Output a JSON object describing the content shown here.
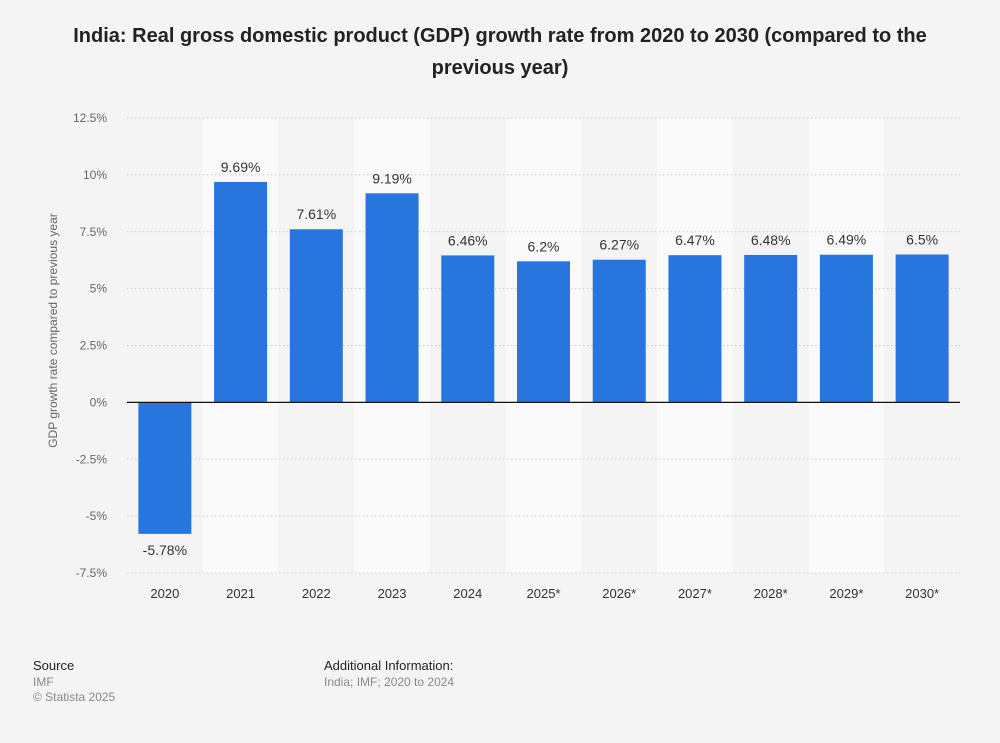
{
  "chart_data": {
    "type": "bar",
    "title": "India: Real gross domestic product (GDP) growth rate from 2020 to 2030 (compared to the previous year)",
    "xlabel": "",
    "ylabel": "GDP growth rate compared to previous year",
    "categories": [
      "2020",
      "2021",
      "2022",
      "2023",
      "2024",
      "2025*",
      "2026*",
      "2027*",
      "2028*",
      "2029*",
      "2030*"
    ],
    "values": [
      -5.78,
      9.69,
      7.61,
      9.19,
      6.46,
      6.2,
      6.27,
      6.47,
      6.48,
      6.49,
      6.5
    ],
    "data_labels": [
      "-5.78%",
      "9.69%",
      "7.61%",
      "9.19%",
      "6.46%",
      "6.2%",
      "6.27%",
      "6.47%",
      "6.48%",
      "6.49%",
      "6.5%"
    ],
    "ylim": [
      -7.5,
      12.5
    ],
    "yticks": [
      12.5,
      10,
      7.5,
      5,
      2.5,
      0,
      -2.5,
      -5,
      -7.5
    ],
    "ytick_labels": [
      "12.5%",
      "10%",
      "7.5%",
      "5%",
      "2.5%",
      "0%",
      "-2.5%",
      "-5%",
      "-7.5%"
    ],
    "grid": true,
    "bar_color": "#2876dd"
  },
  "footer": {
    "source_heading": "Source",
    "source": "IMF",
    "copyright": "© Statista 2025",
    "additional_heading": "Additional Information:",
    "additional": "India; IMF; 2020 to 2024"
  }
}
